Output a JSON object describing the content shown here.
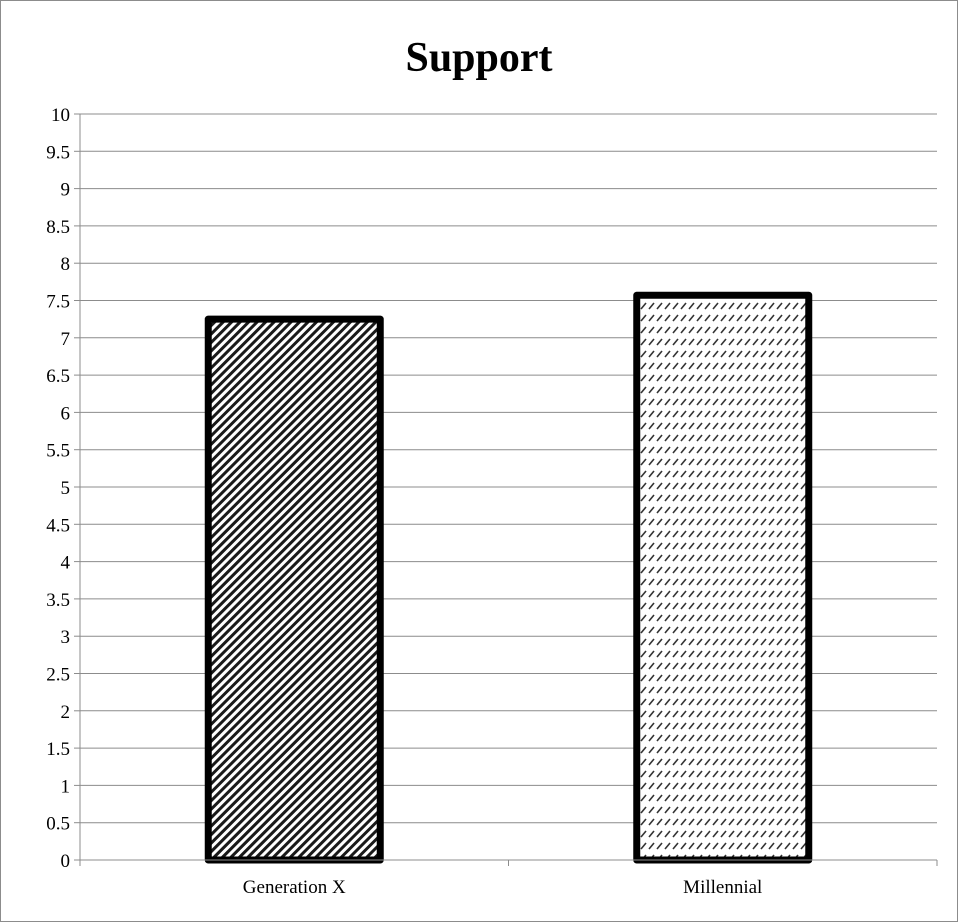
{
  "chart_data": {
    "type": "bar",
    "title": "Support",
    "xlabel": "",
    "ylabel": "",
    "categories": [
      "Generation X",
      "Millennial"
    ],
    "values": [
      7.25,
      7.57
    ],
    "ylim": [
      0,
      10
    ],
    "yticks": [
      "0",
      "0.5",
      "1",
      "1.5",
      "2",
      "2.5",
      "3",
      "3.5",
      "4",
      "4.5",
      "5",
      "5.5",
      "6",
      "6.5",
      "7",
      "7.5",
      "8",
      "8.5",
      "9",
      "9.5",
      "10"
    ],
    "grid": true,
    "legend": "none",
    "bar_patterns": [
      "dense-diagonal-hatch",
      "light-dashed-hatch"
    ],
    "bar_edge_color": "#000000",
    "grid_color": "#8c8c8c"
  }
}
